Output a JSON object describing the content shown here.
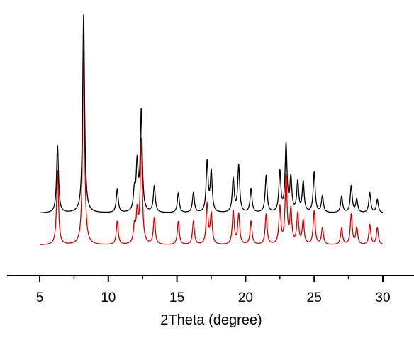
{
  "chart_data": {
    "type": "line",
    "title": "",
    "xlabel": "2Theta (degree)",
    "ylabel": "",
    "xlim": [
      4,
      31.2
    ],
    "x_ticks": [
      5,
      10,
      15,
      20,
      25,
      30
    ],
    "x_tick_labels": [
      "5",
      "10",
      "15",
      "20",
      "25",
      "30"
    ],
    "y_axis_shown": false,
    "grid": false,
    "legend": "none",
    "series": [
      {
        "color": "#000000",
        "x_range": [
          5.0,
          30.0
        ],
        "baseline": 0.0,
        "peaks": [
          {
            "x": 6.3,
            "y": 0.2
          },
          {
            "x": 8.2,
            "y": 0.59
          },
          {
            "x": 10.65,
            "y": 0.07
          },
          {
            "x": 11.9,
            "y": 0.06
          },
          {
            "x": 12.1,
            "y": 0.14
          },
          {
            "x": 12.4,
            "y": 0.3
          },
          {
            "x": 13.35,
            "y": 0.08
          },
          {
            "x": 15.1,
            "y": 0.06
          },
          {
            "x": 16.2,
            "y": 0.06
          },
          {
            "x": 17.2,
            "y": 0.15
          },
          {
            "x": 17.5,
            "y": 0.12
          },
          {
            "x": 19.1,
            "y": 0.1
          },
          {
            "x": 19.5,
            "y": 0.14
          },
          {
            "x": 20.4,
            "y": 0.07
          },
          {
            "x": 21.5,
            "y": 0.11
          },
          {
            "x": 22.5,
            "y": 0.12
          },
          {
            "x": 22.95,
            "y": 0.2
          },
          {
            "x": 23.3,
            "y": 0.1
          },
          {
            "x": 23.8,
            "y": 0.09
          },
          {
            "x": 24.2,
            "y": 0.09
          },
          {
            "x": 25.0,
            "y": 0.12
          },
          {
            "x": 25.6,
            "y": 0.05
          },
          {
            "x": 27.0,
            "y": 0.05
          },
          {
            "x": 27.7,
            "y": 0.08
          },
          {
            "x": 28.1,
            "y": 0.04
          },
          {
            "x": 29.05,
            "y": 0.06
          },
          {
            "x": 29.6,
            "y": 0.04
          }
        ]
      },
      {
        "color": "#d40000",
        "x_range": [
          5.0,
          30.0
        ],
        "baseline": 0.0,
        "peaks": [
          {
            "x": 6.3,
            "y": 0.22
          },
          {
            "x": 8.2,
            "y": 0.58
          },
          {
            "x": 10.65,
            "y": 0.07
          },
          {
            "x": 11.9,
            "y": 0.05
          },
          {
            "x": 12.1,
            "y": 0.09
          },
          {
            "x": 12.4,
            "y": 0.31
          },
          {
            "x": 13.35,
            "y": 0.08
          },
          {
            "x": 15.1,
            "y": 0.07
          },
          {
            "x": 16.2,
            "y": 0.07
          },
          {
            "x": 17.2,
            "y": 0.12
          },
          {
            "x": 17.5,
            "y": 0.09
          },
          {
            "x": 19.1,
            "y": 0.1
          },
          {
            "x": 19.5,
            "y": 0.09
          },
          {
            "x": 20.4,
            "y": 0.07
          },
          {
            "x": 21.5,
            "y": 0.09
          },
          {
            "x": 22.5,
            "y": 0.11
          },
          {
            "x": 22.95,
            "y": 0.2
          },
          {
            "x": 23.3,
            "y": 0.1
          },
          {
            "x": 23.8,
            "y": 0.09
          },
          {
            "x": 24.2,
            "y": 0.07
          },
          {
            "x": 25.0,
            "y": 0.1
          },
          {
            "x": 25.6,
            "y": 0.05
          },
          {
            "x": 27.0,
            "y": 0.05
          },
          {
            "x": 27.7,
            "y": 0.09
          },
          {
            "x": 28.1,
            "y": 0.05
          },
          {
            "x": 29.05,
            "y": 0.06
          },
          {
            "x": 29.6,
            "y": 0.05
          }
        ]
      }
    ]
  }
}
